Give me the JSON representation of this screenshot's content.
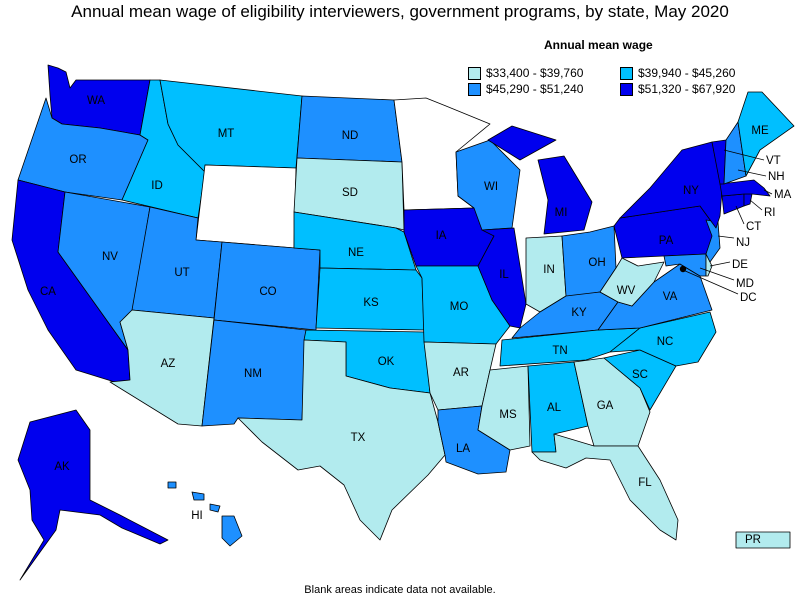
{
  "title": "Annual mean wage of eligibility interviewers, government programs, by state, May 2020",
  "legend": {
    "title": "Annual mean wage",
    "items": [
      {
        "range": "$33,400 - $39,760",
        "color": "#b2ebee"
      },
      {
        "range": "$39,940 - $45,260",
        "color": "#00bfff"
      },
      {
        "range": "$45,290 - $51,240",
        "color": "#1e90ff"
      },
      {
        "range": "$51,320 - $67,920",
        "color": "#0000ee"
      }
    ]
  },
  "no_data_color": "#ffffff",
  "footnote": "Blank areas indicate data not available.",
  "states": {
    "WA": 3,
    "OR": 2,
    "CA": 3,
    "NV": 2,
    "ID": 1,
    "MT": 1,
    "WY": -1,
    "UT": 2,
    "AZ": 0,
    "CO": 2,
    "NM": 2,
    "ND": 2,
    "SD": 0,
    "NE": 1,
    "KS": 1,
    "OK": 1,
    "TX": 0,
    "MN": -1,
    "IA": 3,
    "MO": 1,
    "AR": 0,
    "LA": 2,
    "WI": 2,
    "IL": 3,
    "MI": 3,
    "IN": 0,
    "OH": 2,
    "KY": 2,
    "TN": 1,
    "MS": 0,
    "AL": 1,
    "GA": 0,
    "FL": 0,
    "SC": 1,
    "NC": 1,
    "VA": 2,
    "WV": 0,
    "MD": 2,
    "DE": 0,
    "DC": 3,
    "PA": 3,
    "NJ": 2,
    "NY": 3,
    "CT": 3,
    "RI": 3,
    "MA": 3,
    "VT": 3,
    "NH": 2,
    "ME": 1,
    "AK": 3,
    "HI": 2,
    "PR": 0
  },
  "labels": {
    "WA": "WA",
    "OR": "OR",
    "CA": "CA",
    "NV": "NV",
    "ID": "ID",
    "MT": "MT",
    "UT": "UT",
    "AZ": "AZ",
    "CO": "CO",
    "NM": "NM",
    "ND": "ND",
    "SD": "SD",
    "NE": "NE",
    "KS": "KS",
    "OK": "OK",
    "TX": "TX",
    "IA": "IA",
    "MO": "MO",
    "AR": "AR",
    "LA": "LA",
    "WI": "WI",
    "IL": "IL",
    "MI": "MI",
    "IN": "IN",
    "OH": "OH",
    "KY": "KY",
    "TN": "TN",
    "MS": "MS",
    "AL": "AL",
    "GA": "GA",
    "FL": "FL",
    "SC": "SC",
    "NC": "NC",
    "VA": "VA",
    "WV": "WV",
    "PA": "PA",
    "NY": "NY",
    "ME": "ME",
    "AK": "AK",
    "HI": "HI",
    "PR": "PR",
    "VT": "VT",
    "NH": "NH",
    "MA": "MA",
    "RI": "RI",
    "CT": "CT",
    "NJ": "NJ",
    "DE": "DE",
    "MD": "MD",
    "DC": "DC"
  }
}
